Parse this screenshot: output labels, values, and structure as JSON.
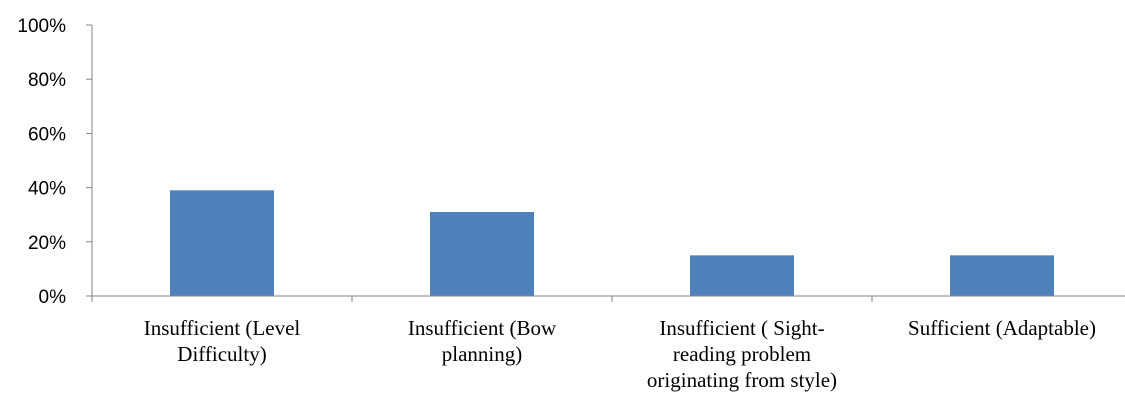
{
  "chart_data": {
    "type": "bar",
    "title": "",
    "xlabel": "",
    "ylabel": "",
    "ylim": [
      0,
      1
    ],
    "y_ticks": [
      "0%",
      "20%",
      "40%",
      "60%",
      "80%",
      "100%"
    ],
    "y_tick_values": [
      0,
      0.2,
      0.4,
      0.6,
      0.8,
      1.0
    ],
    "grid": false,
    "legend": "none",
    "bar_color": "#4F81BD",
    "categories": [
      [
        "Insufficient (Level",
        "Difficulty)"
      ],
      [
        "Insufficient (Bow",
        "planning)"
      ],
      [
        "Insufficient ( Sight-",
        "reading problem",
        "originating from style)"
      ],
      [
        "Sufficient (Adaptable)"
      ]
    ],
    "values": [
      0.39,
      0.31,
      0.15,
      0.15
    ]
  }
}
